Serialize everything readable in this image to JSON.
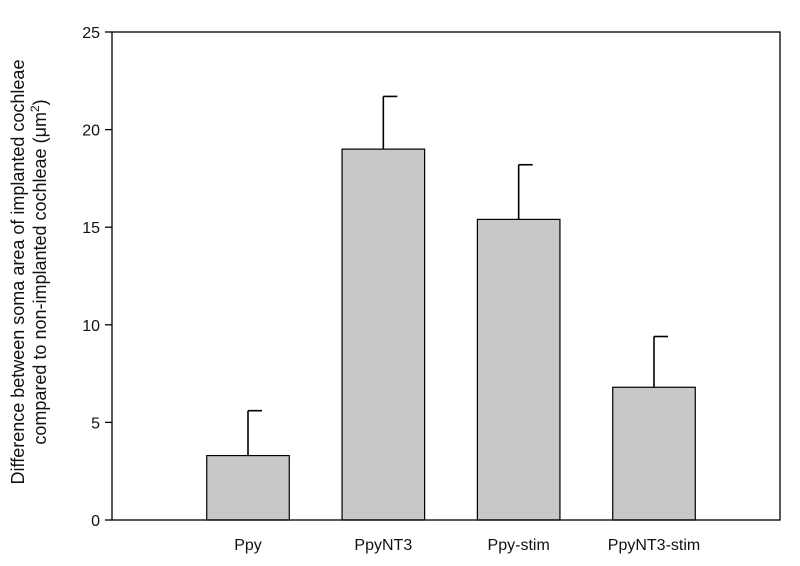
{
  "chart_data": {
    "type": "bar",
    "title": "",
    "xlabel": "",
    "ylabel_line1": "Difference between soma area of implanted cochleae",
    "ylabel_line2_prefix": "compared to non-implanted cochleae (μm",
    "ylabel_line2_sup": "2",
    "ylabel_line2_suffix": ")",
    "categories": [
      "Ppy",
      "PpyNT3",
      "Ppy-stim",
      "PpyNT3-stim"
    ],
    "values": [
      3.3,
      19.0,
      15.4,
      6.8
    ],
    "errors": [
      2.3,
      2.7,
      2.8,
      2.6
    ],
    "ylim": [
      0,
      25
    ],
    "yticks": [
      0,
      5,
      10,
      15,
      20,
      25
    ],
    "grid": false,
    "legend": "none",
    "bar_color": "#c8c8c8",
    "edge_color": "#000000"
  }
}
